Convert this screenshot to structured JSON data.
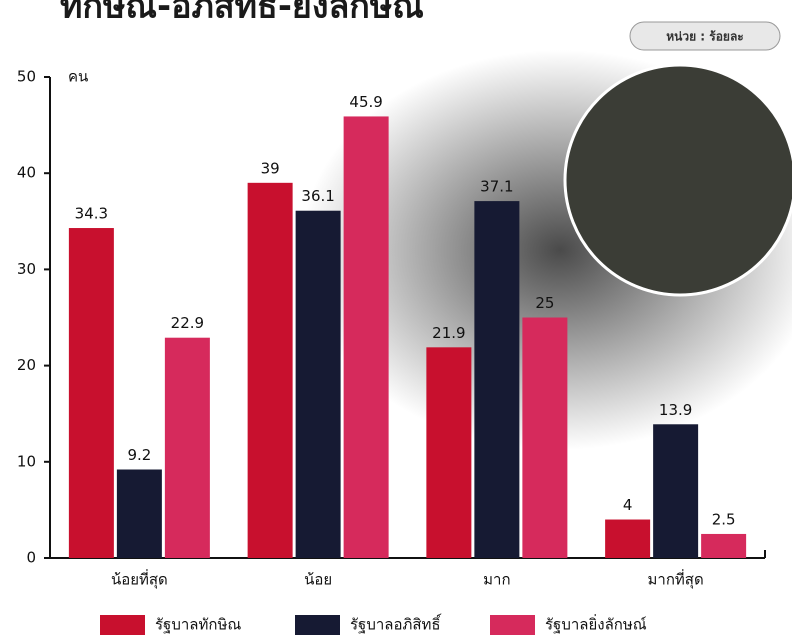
{
  "chart_data": {
    "type": "bar",
    "title": "ทักษิณ-อภิสิทธิ์-ยิ่งลักษณ์",
    "unit": "หน่วย : ร้อยละ",
    "y_label": "คน",
    "categories": [
      "น้อยที่สุด",
      "น้อย",
      "มาก",
      "มากที่สุด"
    ],
    "series": [
      {
        "name": "รัฐบาลทักษิณ",
        "color": "#c8102e",
        "values": [
          34.3,
          39,
          21.9,
          4
        ]
      },
      {
        "name": "รัฐบาลอภิสิทธิ์",
        "color": "#161a33",
        "values": [
          9.2,
          36.1,
          37.1,
          13.9
        ]
      },
      {
        "name": "รัฐบาลยิ่งลักษณ์",
        "color": "#d62a5c",
        "values": [
          22.9,
          45.9,
          25,
          2.5
        ]
      }
    ],
    "ylim": [
      0,
      50
    ],
    "yticks": [
      0,
      10,
      20,
      30,
      40,
      50
    ]
  }
}
